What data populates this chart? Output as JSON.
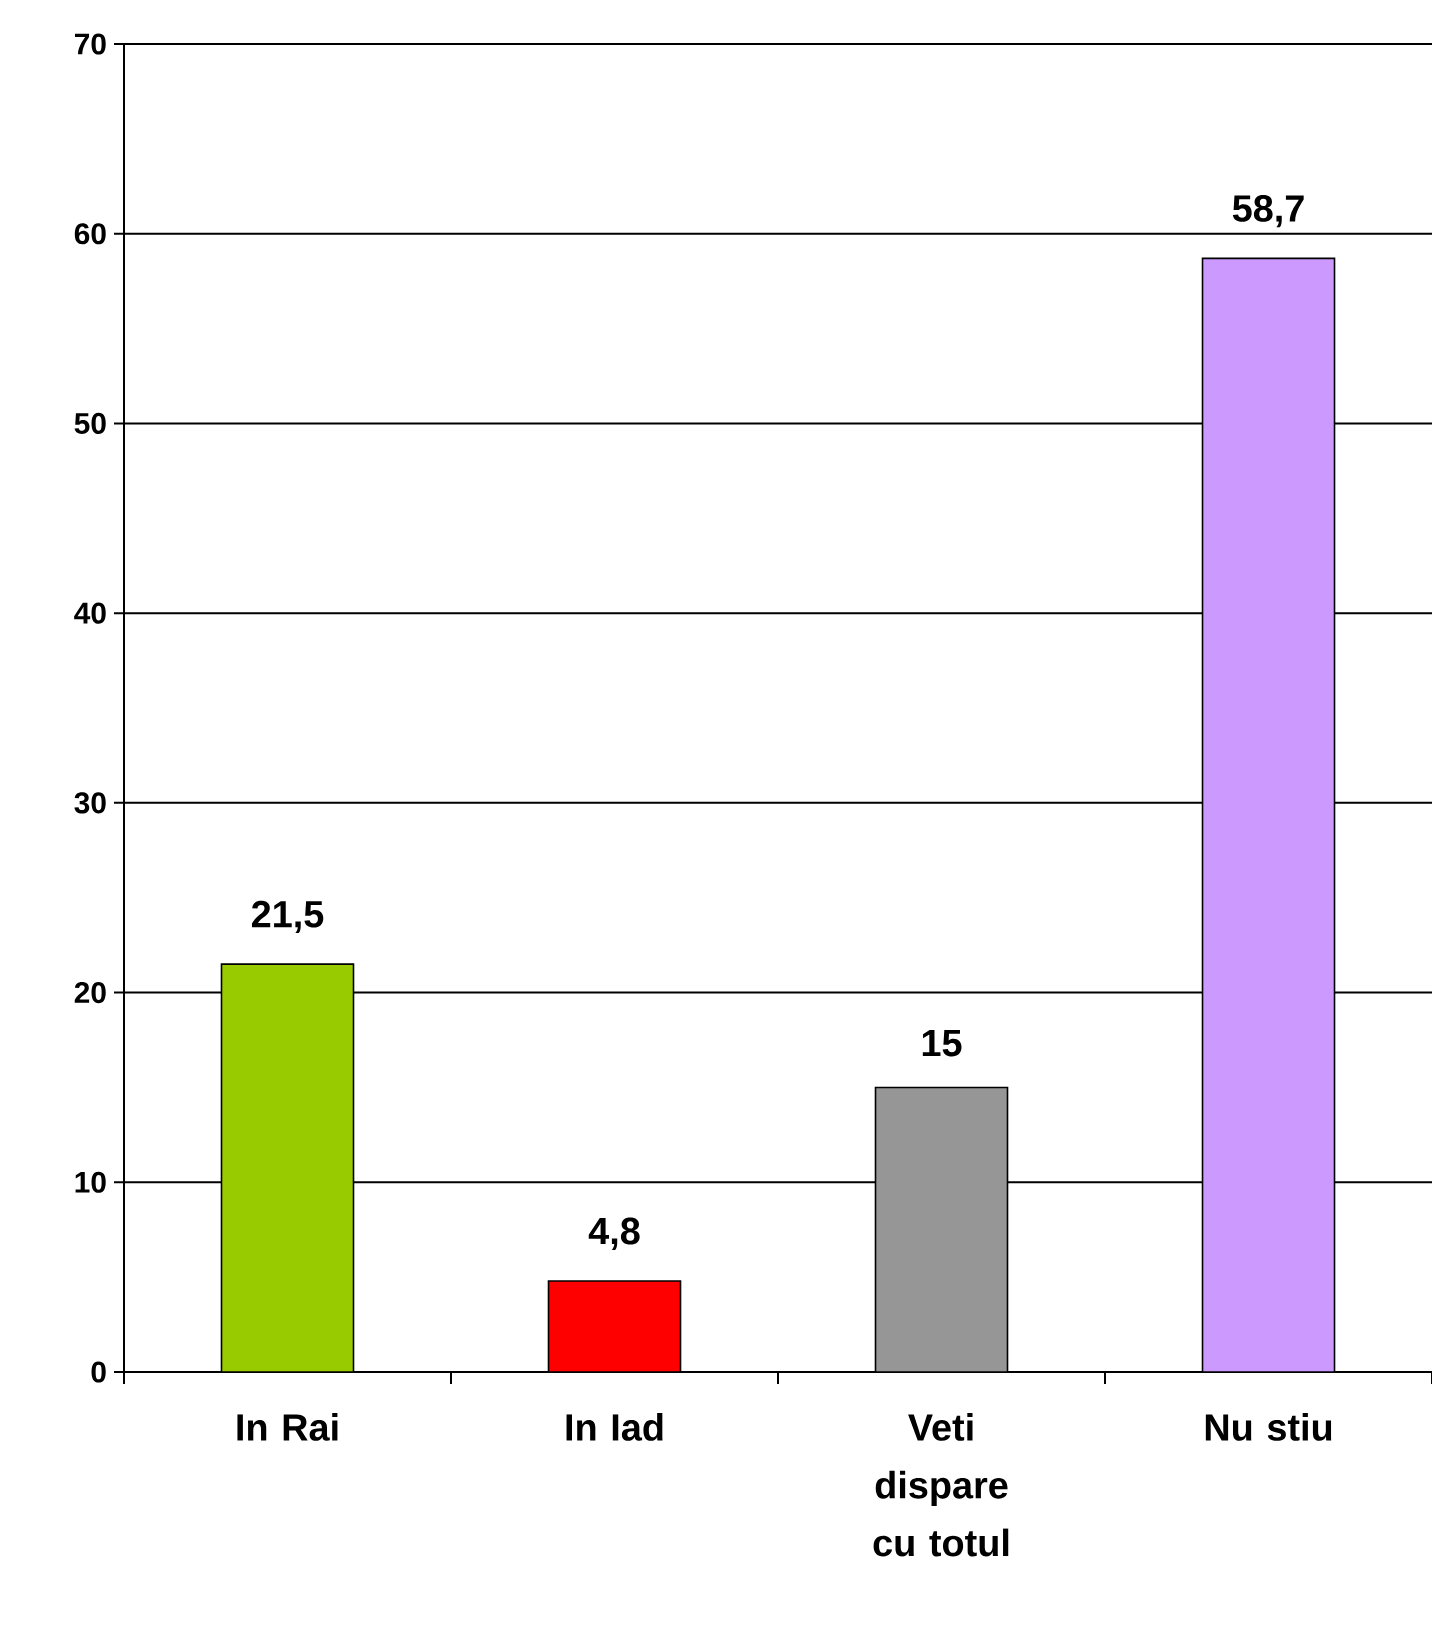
{
  "chart_data": {
    "type": "bar",
    "categories": [
      "In Rai",
      "In Iad",
      "Veti dispare cu totul",
      "Nu stiu"
    ],
    "values": [
      21.5,
      4.8,
      15,
      58.7
    ],
    "colors": [
      "#99cc00",
      "#ff0000",
      "#969696",
      "#cc99ff"
    ],
    "value_labels": [
      "21,5",
      "4,8",
      "15",
      "58,7"
    ],
    "ylim": [
      0,
      70
    ],
    "yticks": [
      0,
      10,
      20,
      30,
      40,
      50,
      60,
      70
    ],
    "grid": "y"
  }
}
